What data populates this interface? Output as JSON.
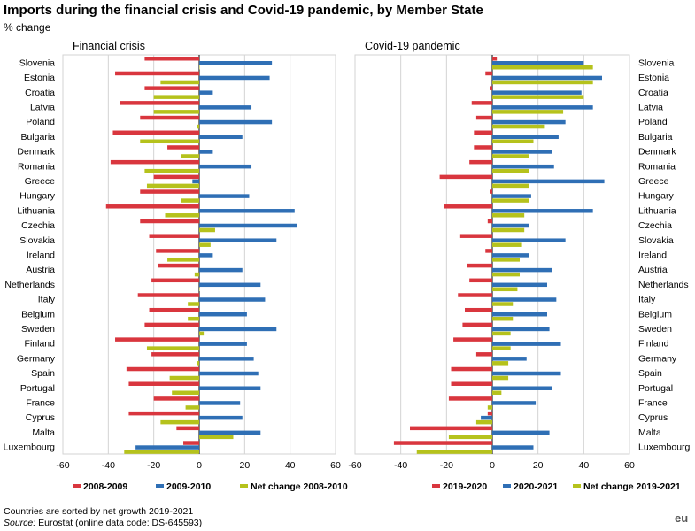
{
  "header": {
    "title": "Imports during the financial crisis and Covid-19 pandemic, by Member State",
    "subtitle": "% change"
  },
  "footer": {
    "note": "Countries are sorted by net growth 2019-2021",
    "source_label": "Source:",
    "source_text": "Eurostat (online data code: DS-645593)",
    "logo": "eu"
  },
  "colors": {
    "red": "#d9363e",
    "blue": "#2f6fb5",
    "green": "#b5c21c",
    "grid": "#d3d3d3"
  },
  "chart_data": [
    {
      "type": "bar",
      "orientation": "horizontal",
      "title": "Financial crisis",
      "xlim": [
        -60,
        60
      ],
      "xticks": [
        -60,
        -40,
        -20,
        0,
        20,
        40,
        60
      ],
      "categories": [
        "Slovenia",
        "Estonia",
        "Croatia",
        "Latvia",
        "Poland",
        "Bulgaria",
        "Denmark",
        "Romania",
        "Greece",
        "Hungary",
        "Lithuania",
        "Czechia",
        "Slovakia",
        "Ireland",
        "Austria",
        "Netherlands",
        "Italy",
        "Belgium",
        "Sweden",
        "Finland",
        "Germany",
        "Spain",
        "Portugal",
        "France",
        "Cyprus",
        "Malta",
        "Luxembourg"
      ],
      "series": [
        {
          "name": "2008-2009",
          "color": "red",
          "values": [
            -24,
            -37,
            -24,
            -35,
            -26,
            -38,
            -14,
            -39,
            -20,
            -26,
            -41,
            -26,
            -22,
            -19,
            -18,
            -21,
            -27,
            -22,
            -24,
            -37,
            -21,
            -32,
            -31,
            -20,
            -31,
            -10,
            -7
          ]
        },
        {
          "name": "2009-2010",
          "color": "blue",
          "values": [
            32,
            31,
            6,
            23,
            32,
            19,
            6,
            23,
            -3,
            22,
            42,
            43,
            34,
            6,
            19,
            27,
            29,
            21,
            34,
            21,
            24,
            26,
            27,
            18,
            19,
            27,
            -28
          ]
        },
        {
          "name": "Net change 2008-2010",
          "color": "green",
          "values": [
            0,
            -17,
            -20,
            -20,
            -1,
            -26,
            -8,
            -24,
            -23,
            -8,
            -15,
            7,
            5,
            -14,
            -2,
            0,
            -5,
            -5,
            2,
            -23,
            -1,
            -13,
            -12,
            -6,
            -17,
            15,
            -33
          ]
        }
      ]
    },
    {
      "type": "bar",
      "orientation": "horizontal",
      "title": "Covid-19 pandemic",
      "xlim": [
        -60,
        60
      ],
      "xticks": [
        -60,
        -40,
        -20,
        0,
        20,
        40,
        60
      ],
      "categories": [
        "Slovenia",
        "Estonia",
        "Croatia",
        "Latvia",
        "Poland",
        "Bulgaria",
        "Denmark",
        "Romania",
        "Greece",
        "Hungary",
        "Lithuania",
        "Czechia",
        "Slovakia",
        "Ireland",
        "Austria",
        "Netherlands",
        "Italy",
        "Belgium",
        "Sweden",
        "Finland",
        "Germany",
        "Spain",
        "Portugal",
        "France",
        "Cyprus",
        "Malta",
        "Luxembourg"
      ],
      "series": [
        {
          "name": "2019-2020",
          "color": "red",
          "values": [
            2,
            -3,
            -1,
            -9,
            -7,
            -8,
            -8,
            -10,
            -23,
            -1,
            -21,
            -2,
            -14,
            -3,
            -11,
            -10,
            -15,
            -12,
            -13,
            -17,
            -7,
            -18,
            -18,
            -19,
            -2,
            -36,
            -43
          ]
        },
        {
          "name": "2020-2021",
          "color": "blue",
          "values": [
            40,
            48,
            39,
            44,
            32,
            29,
            26,
            27,
            49,
            17,
            44,
            16,
            32,
            16,
            26,
            24,
            28,
            24,
            25,
            30,
            15,
            30,
            26,
            19,
            -5,
            25,
            18
          ]
        },
        {
          "name": "Net change 2019-2021",
          "color": "green",
          "values": [
            44,
            44,
            40,
            31,
            23,
            18,
            16,
            16,
            16,
            16,
            14,
            14,
            13,
            12,
            12,
            11,
            9,
            9,
            8,
            8,
            7,
            7,
            4,
            -2,
            -7,
            -19,
            -33
          ]
        }
      ]
    }
  ]
}
